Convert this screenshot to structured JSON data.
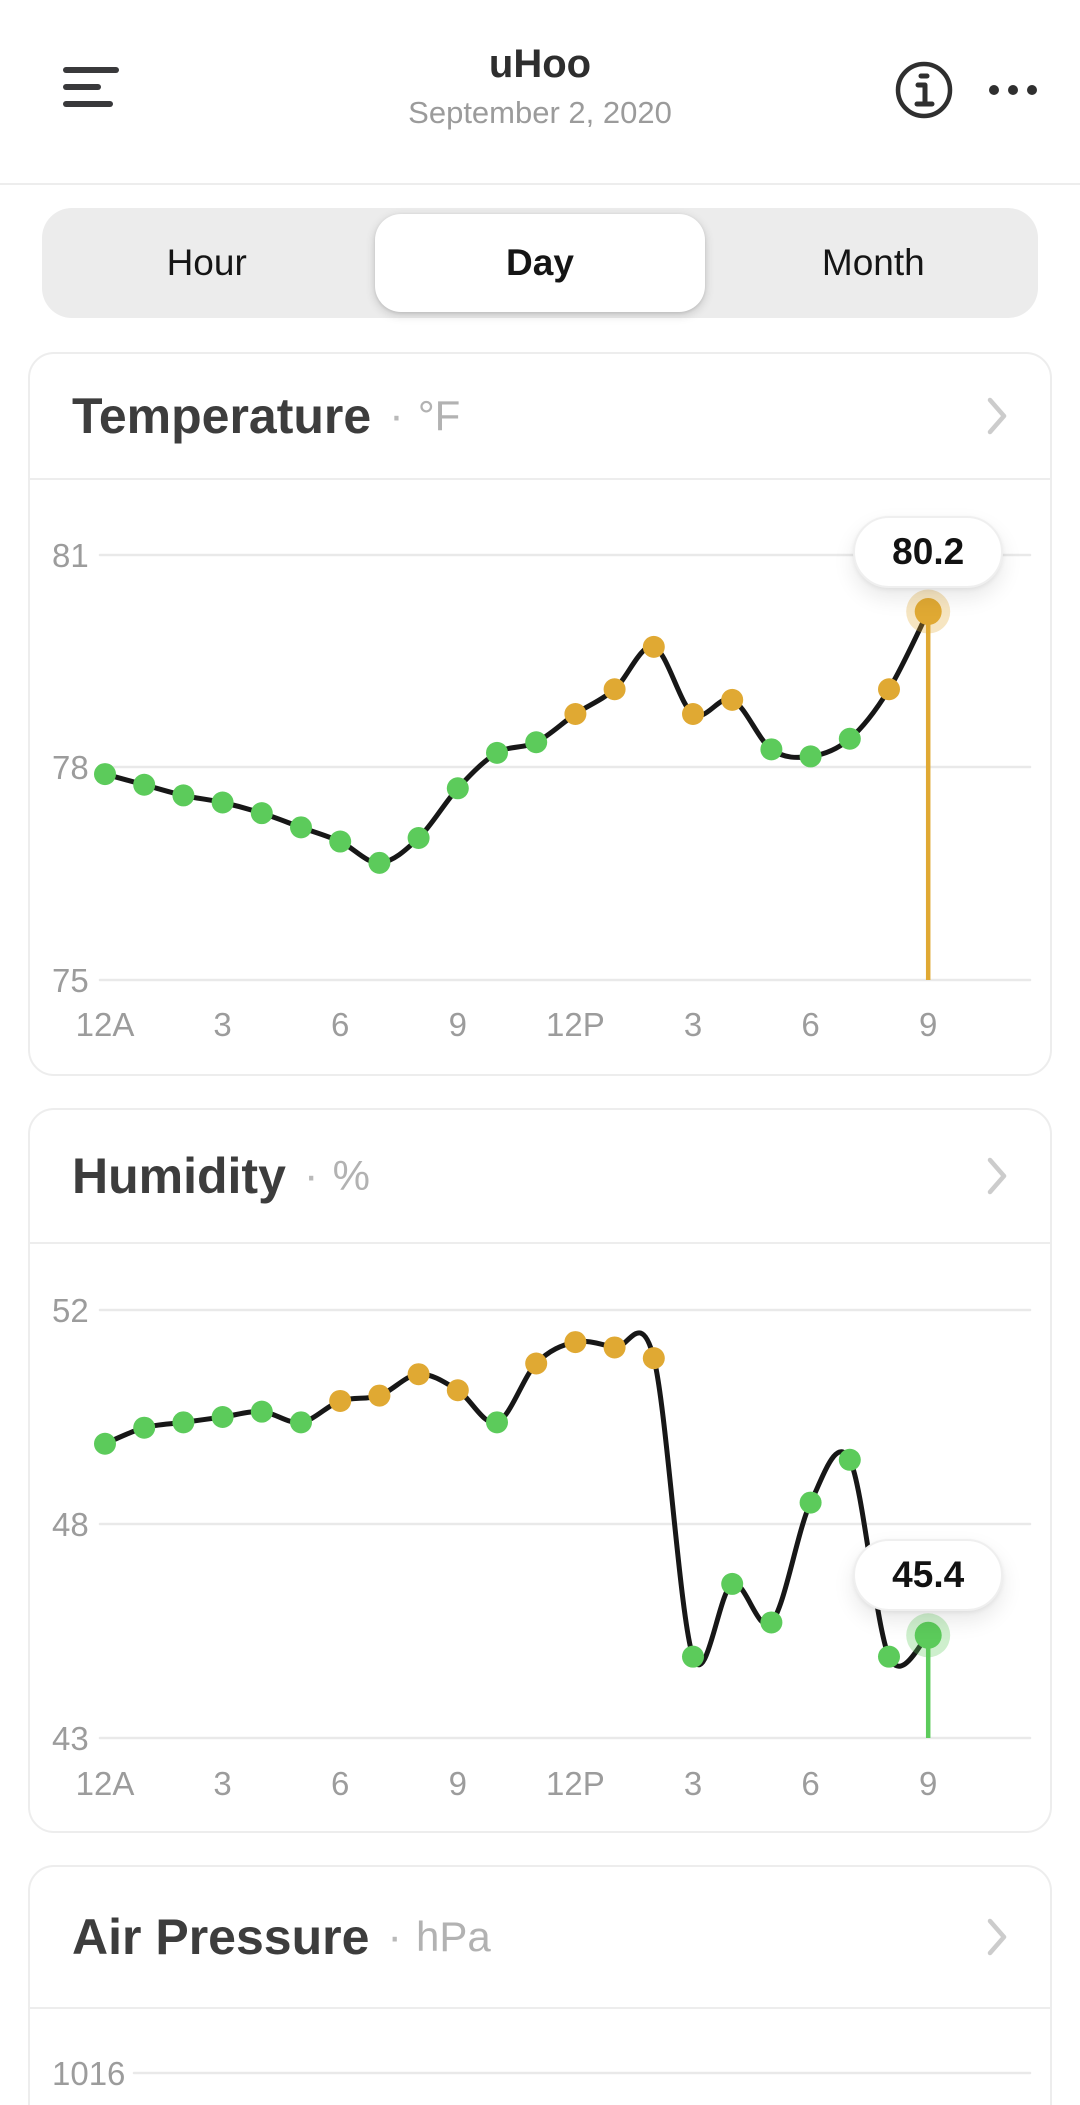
{
  "header": {
    "title": "uHoo",
    "date": "September 2, 2020",
    "menu_icon": "hamburger-icon",
    "info_icon": "info-icon",
    "more_icon": "ellipsis-icon"
  },
  "tabs": {
    "options": [
      "Hour",
      "Day",
      "Month"
    ],
    "selected": "Day"
  },
  "colors": {
    "good": "#5ccb5b",
    "warn": "#e0a933",
    "line": "#171717",
    "grid": "#e9e9e9",
    "axis_text": "#9c9c9c"
  },
  "chart_data": [
    {
      "id": "temperature",
      "type": "line",
      "title": "Temperature",
      "unit": "°F",
      "current": "80.2",
      "y_ticks": [
        81,
        78,
        75
      ],
      "x_labels": [
        "12A",
        "3",
        "6",
        "9",
        "12P",
        "3",
        "6",
        "9"
      ],
      "x_label_indices": [
        0,
        3,
        6,
        9,
        12,
        15,
        18,
        21
      ],
      "x_hours": [
        "12A",
        "1A",
        "2A",
        "3A",
        "4A",
        "5A",
        "6A",
        "7A",
        "8A",
        "9A",
        "10A",
        "11A",
        "12P",
        "1P",
        "2P",
        "3P",
        "4P",
        "5P",
        "6P",
        "7P",
        "8P",
        "9P"
      ],
      "values": [
        77.9,
        77.75,
        77.6,
        77.5,
        77.35,
        77.15,
        76.95,
        76.65,
        77.0,
        77.7,
        78.2,
        78.35,
        78.75,
        79.1,
        79.7,
        78.75,
        78.95,
        78.25,
        78.15,
        78.4,
        79.1,
        80.2
      ],
      "statuses": [
        "good",
        "good",
        "good",
        "good",
        "good",
        "good",
        "good",
        "good",
        "good",
        "good",
        "good",
        "good",
        "warn",
        "warn",
        "warn",
        "warn",
        "warn",
        "good",
        "good",
        "good",
        "warn",
        "warn"
      ],
      "legend": "none",
      "grid": "horizontal"
    },
    {
      "id": "humidity",
      "type": "line",
      "title": "Humidity",
      "unit": "%",
      "current": "45.4",
      "y_ticks": [
        52,
        48,
        43
      ],
      "x_labels": [
        "12A",
        "3",
        "6",
        "9",
        "12P",
        "3",
        "6",
        "9"
      ],
      "x_label_indices": [
        0,
        3,
        6,
        9,
        12,
        15,
        18,
        21
      ],
      "x_hours": [
        "12A",
        "1A",
        "2A",
        "3A",
        "4A",
        "5A",
        "6A",
        "7A",
        "8A",
        "9A",
        "10A",
        "11A",
        "12P",
        "1P",
        "2P",
        "3P",
        "4P",
        "5P",
        "6P",
        "7P",
        "8P",
        "9P"
      ],
      "values": [
        49.5,
        49.8,
        49.9,
        50.0,
        50.1,
        49.9,
        50.3,
        50.4,
        50.8,
        50.5,
        49.9,
        51.0,
        51.4,
        51.3,
        51.1,
        44.9,
        46.6,
        45.7,
        48.4,
        49.2,
        44.9,
        45.4
      ],
      "statuses": [
        "good",
        "good",
        "good",
        "good",
        "good",
        "good",
        "warn",
        "warn",
        "warn",
        "warn",
        "good",
        "warn",
        "warn",
        "warn",
        "warn",
        "good",
        "good",
        "good",
        "good",
        "good",
        "good",
        "good"
      ],
      "legend": "none",
      "grid": "horizontal"
    },
    {
      "id": "air-pressure",
      "type": "line",
      "title": "Air Pressure",
      "unit": "hPa",
      "current": "",
      "y_ticks": [
        1016
      ],
      "x_labels": [],
      "x_label_indices": [],
      "values": [],
      "statuses": [],
      "legend": "none",
      "grid": "horizontal",
      "note": "card cut off at bottom of screen"
    }
  ]
}
